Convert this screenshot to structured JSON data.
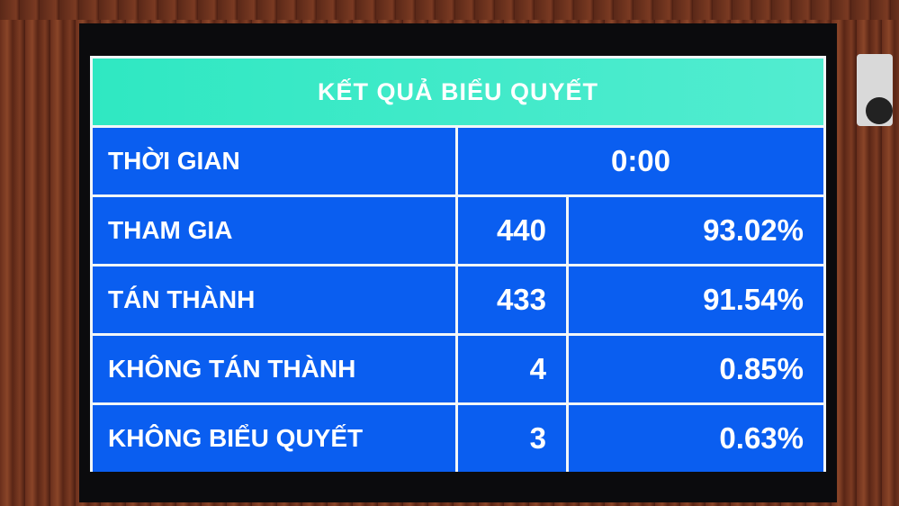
{
  "title": "KẾT QUẢ BIỂU QUYẾT",
  "time": {
    "label": "THỜI GIAN",
    "value": "0:00"
  },
  "rows": [
    {
      "label": "THAM GIA",
      "count": "440",
      "percent": "93.02%"
    },
    {
      "label": "TÁN THÀNH",
      "count": "433",
      "percent": "91.54%"
    },
    {
      "label": "KHÔNG TÁN THÀNH",
      "count": "4",
      "percent": "0.85%"
    },
    {
      "label": "KHÔNG BIỂU QUYẾT",
      "count": "3",
      "percent": "0.63%"
    }
  ],
  "colors": {
    "header": "#3ae9c6",
    "cells": "#0a5ef0",
    "grid": "#f2f6f8"
  }
}
